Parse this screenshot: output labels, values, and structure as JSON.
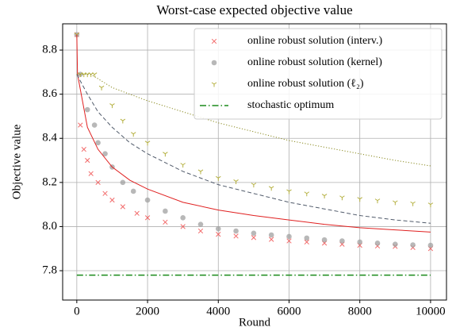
{
  "chart_data": {
    "type": "line",
    "title": "Worst-case expected objective value",
    "x_label": "Round",
    "y_label": "Objective value",
    "xlim": [
      -400,
      10450
    ],
    "ylim": [
      7.667,
      8.919
    ],
    "xticks": [
      0,
      2000,
      4000,
      6000,
      8000,
      10000
    ],
    "yticks": [
      7.8,
      {
        "value": 8.0,
        "label": "8.0"
      },
      8.2,
      8.4,
      8.6,
      8.8
    ],
    "grid": true,
    "legend": "upper right",
    "series": [
      {
        "name": "online robust solution (interv.)",
        "color": "#f05050",
        "kind": "scatter",
        "marker": "x",
        "x": [
          0,
          100,
          200,
          300,
          400,
          600,
          800,
          1000,
          1300,
          1700,
          2000,
          2500,
          3000,
          3500,
          4000,
          4500,
          5000,
          5500,
          6000,
          6500,
          7000,
          7500,
          8000,
          8500,
          9000,
          9500,
          10000
        ],
        "values": [
          8.87,
          8.46,
          8.35,
          8.3,
          8.24,
          8.2,
          8.15,
          8.12,
          8.09,
          8.06,
          8.04,
          8.02,
          8.0,
          7.98,
          7.965,
          7.957,
          7.95,
          7.942,
          7.935,
          7.93,
          7.925,
          7.92,
          7.915,
          7.912,
          7.91,
          7.905,
          7.9
        ]
      },
      {
        "name": "online robust solution (kernel)",
        "color": "#a0a0a0",
        "kind": "scatter",
        "marker": "o",
        "x": [
          0,
          100,
          300,
          500,
          600,
          800,
          1000,
          1300,
          1600,
          2000,
          2500,
          3000,
          3500,
          4000,
          4500,
          5000,
          5500,
          6000,
          6500,
          7000,
          7500,
          8000,
          8500,
          9000,
          9500,
          10000
        ],
        "values": [
          8.87,
          8.69,
          8.53,
          8.46,
          8.38,
          8.33,
          8.27,
          8.2,
          8.16,
          8.12,
          8.07,
          8.04,
          8.01,
          7.99,
          7.98,
          7.97,
          7.962,
          7.955,
          7.948,
          7.94,
          7.935,
          7.93,
          7.925,
          7.92,
          7.917,
          7.915
        ]
      },
      {
        "name": "online robust solution (ℓ₂)",
        "color": "#b5b040",
        "kind": "scatter",
        "marker": "tri",
        "x": [
          0,
          100,
          200,
          300,
          400,
          500,
          700,
          1000,
          1300,
          1600,
          2000,
          2500,
          3000,
          3500,
          4000,
          4500,
          5000,
          5500,
          6000,
          6500,
          7000,
          7500,
          8000,
          8500,
          9000,
          9500,
          10000
        ],
        "values": [
          8.87,
          8.69,
          8.69,
          8.69,
          8.69,
          8.69,
          8.63,
          8.55,
          8.48,
          8.42,
          8.38,
          8.33,
          8.28,
          8.25,
          8.22,
          8.205,
          8.19,
          8.175,
          8.16,
          8.15,
          8.14,
          8.132,
          8.125,
          8.118,
          8.11,
          8.105,
          8.1
        ]
      },
      {
        "color": "#e02020",
        "kind": "line",
        "dash": "solid",
        "x": [
          0,
          20,
          300,
          600,
          1000,
          1500,
          2000,
          3000,
          4000,
          5000,
          6000,
          7000,
          8000,
          9000,
          10000
        ],
        "values": [
          8.87,
          8.69,
          8.45,
          8.35,
          8.27,
          8.21,
          8.17,
          8.11,
          8.075,
          8.05,
          8.03,
          8.01,
          7.995,
          7.985,
          7.975
        ]
      },
      {
        "color": "#505a6a",
        "kind": "line",
        "dash": "dashed",
        "x": [
          0,
          300,
          600,
          1000,
          1500,
          2000,
          3000,
          4000,
          5000,
          6000,
          7000,
          8000,
          9000,
          10000
        ],
        "values": [
          8.69,
          8.6,
          8.52,
          8.45,
          8.38,
          8.33,
          8.25,
          8.19,
          8.15,
          8.11,
          8.08,
          8.05,
          8.03,
          8.015
        ]
      },
      {
        "color": "#8a8a20",
        "kind": "line",
        "dash": "dotted",
        "x": [
          0,
          400,
          1000,
          2000,
          3000,
          4000,
          5000,
          6000,
          7000,
          8000,
          9000,
          10000
        ],
        "values": [
          8.69,
          8.69,
          8.63,
          8.57,
          8.52,
          8.47,
          8.43,
          8.39,
          8.36,
          8.33,
          8.3,
          8.275
        ]
      },
      {
        "name": "stochastic optimum",
        "color": "#1a8a1a",
        "kind": "line",
        "dash": "dashdot",
        "x": [
          0,
          10000
        ],
        "values": [
          7.78,
          7.78
        ]
      }
    ]
  }
}
